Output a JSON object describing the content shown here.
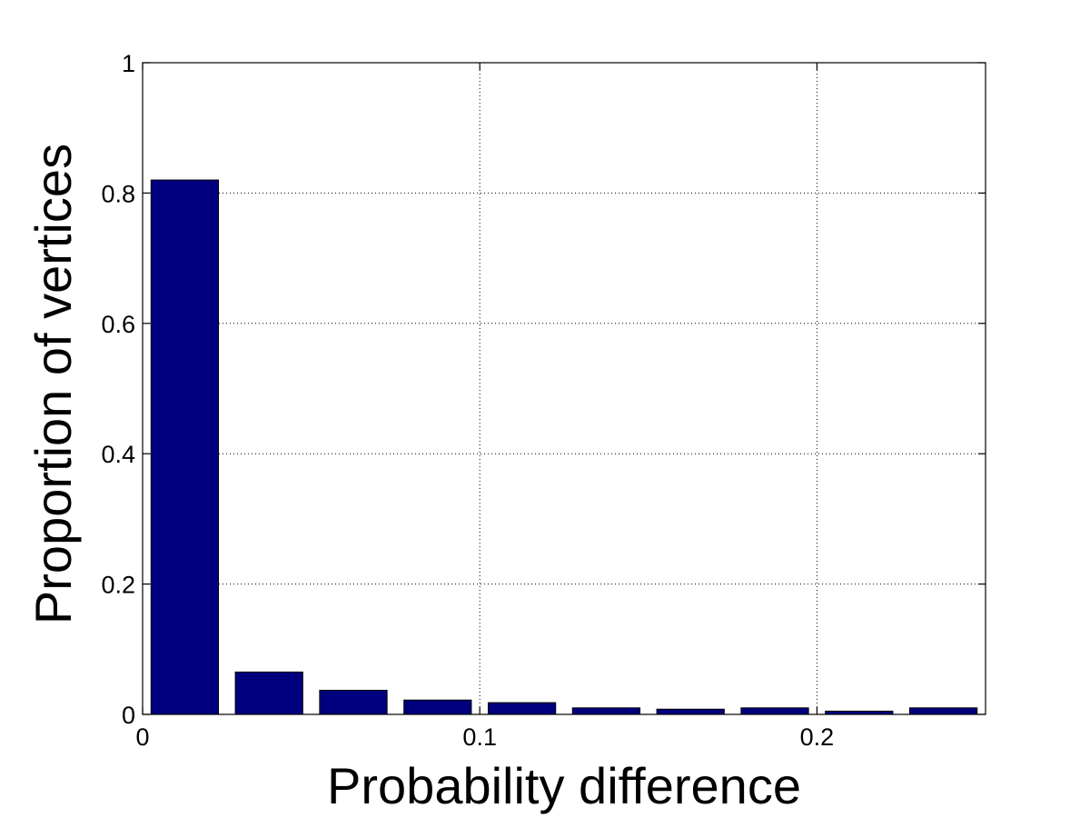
{
  "chart_data": {
    "type": "bar",
    "title": "",
    "xlabel": "Probability difference",
    "ylabel": "Proportion of vertices",
    "x": [
      0.0125,
      0.0375,
      0.0625,
      0.0875,
      0.1125,
      0.1375,
      0.1625,
      0.1875,
      0.2125,
      0.2375
    ],
    "values": [
      0.82,
      0.065,
      0.037,
      0.022,
      0.018,
      0.01,
      0.008,
      0.01,
      0.005,
      0.01
    ],
    "bar_width": 0.02,
    "xlim": [
      0,
      0.25
    ],
    "ylim": [
      0,
      1
    ],
    "x_ticks": [
      0,
      0.1,
      0.2
    ],
    "x_tick_labels": [
      "0",
      "0.1",
      "0.2"
    ],
    "y_ticks": [
      0,
      0.2,
      0.4,
      0.6,
      0.8,
      1
    ],
    "y_tick_labels": [
      "0",
      "0.2",
      "0.4",
      "0.6",
      "0.8",
      "1"
    ],
    "grid": true,
    "colors": {
      "bar": "#00007f",
      "grid": "#000000",
      "axis": "#000000"
    }
  }
}
